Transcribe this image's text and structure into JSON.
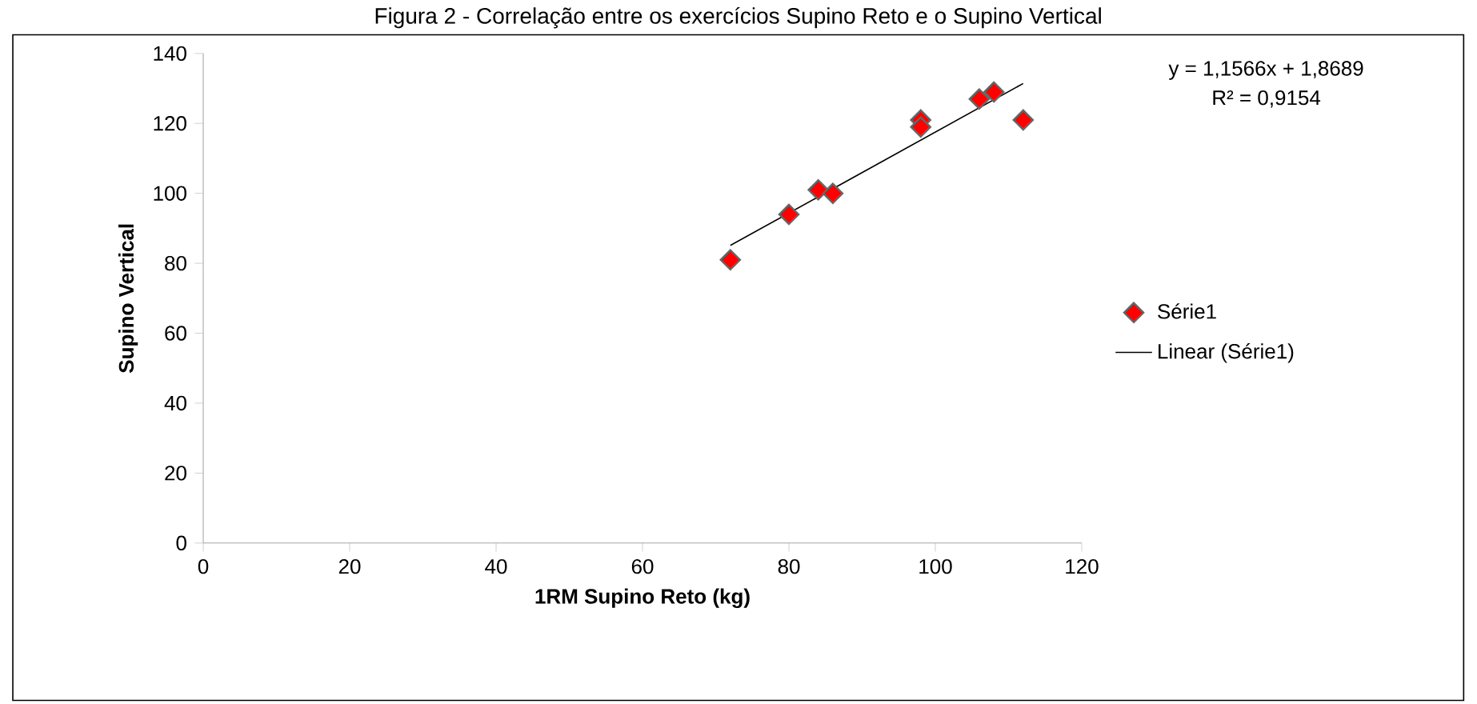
{
  "chart_data": {
    "type": "scatter",
    "title": "Figura 2 - Correlação entre os exercícios Supino Reto e o Supino Vertical",
    "xlabel": "1RM Supino Reto (kg)",
    "ylabel": "Supino Vertical",
    "xlim": [
      0,
      120
    ],
    "xticks": [
      0,
      20,
      40,
      60,
      80,
      100,
      120
    ],
    "ylim": [
      0,
      140
    ],
    "yticks": [
      0,
      20,
      40,
      60,
      80,
      100,
      120,
      140
    ],
    "grid": false,
    "legend": "right",
    "annotations": [
      "y = 1,1566x + 1,8689",
      "R² = 0,9154"
    ],
    "series": [
      {
        "name": "Série1",
        "marker": "diamond",
        "color": "#ff0000",
        "x": [
          72,
          80,
          84,
          86,
          98,
          98,
          106,
          108,
          112
        ],
        "values": [
          81,
          94,
          101,
          100,
          121,
          119,
          127,
          129,
          121
        ]
      },
      {
        "name": "Linear (Série1)",
        "type": "line",
        "marker": "none",
        "color": "#000000",
        "x": [
          72,
          112
        ],
        "values": [
          85.1,
          131.4
        ]
      }
    ]
  }
}
